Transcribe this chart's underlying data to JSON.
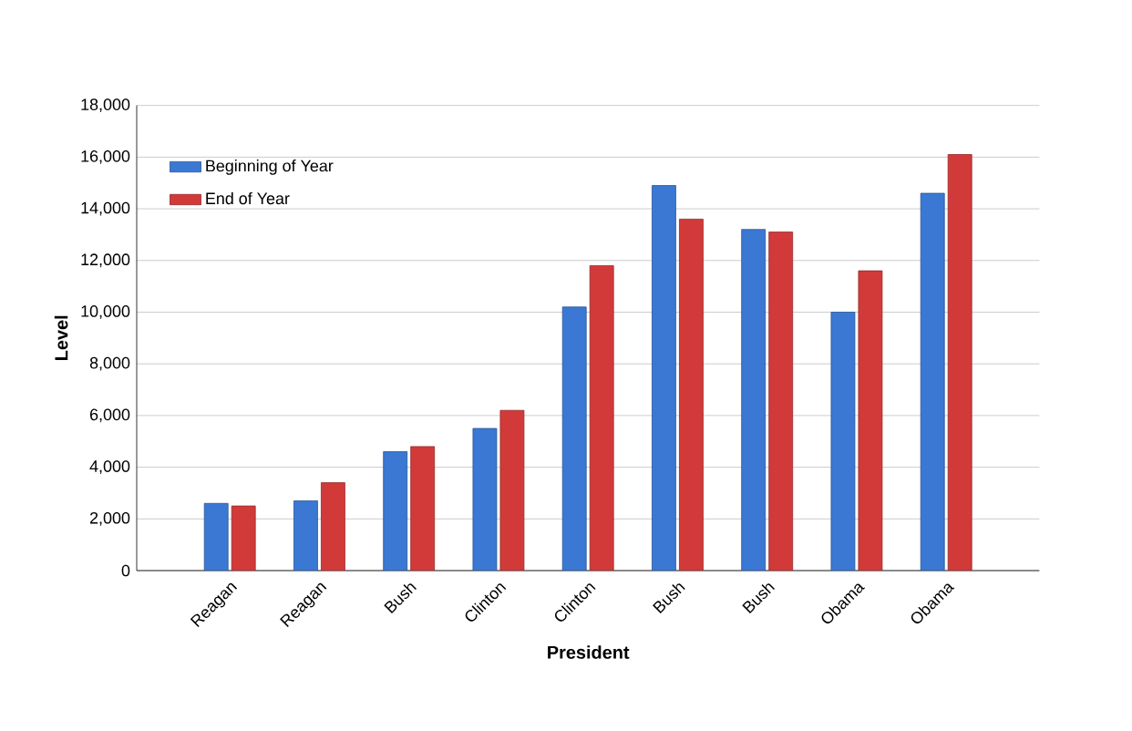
{
  "chart_data": {
    "type": "bar",
    "xlabel": "President",
    "ylabel": "Level",
    "categories": [
      "Reagan",
      "Reagan",
      "Bush",
      "Clinton",
      "Clinton",
      "Bush",
      "Bush",
      "Obama",
      "Obama"
    ],
    "series": [
      {
        "name": "Beginning of Year",
        "color": "#3a78d4",
        "values": [
          2600,
          2700,
          4600,
          5500,
          10200,
          14900,
          13200,
          10000,
          14600
        ]
      },
      {
        "name": "End of Year",
        "color": "#d23a3a",
        "values": [
          2500,
          3400,
          4800,
          6200,
          11800,
          13600,
          13100,
          11600,
          16100
        ]
      }
    ],
    "ylim": [
      0,
      18000
    ],
    "yticks": [
      0,
      {
        "value": 2000,
        "label": "2,000"
      },
      {
        "value": 4000,
        "label": "4,000"
      },
      {
        "value": 6000,
        "label": "6,000"
      },
      {
        "value": 8000,
        "label": "8,000"
      },
      {
        "value": 10000,
        "label": "10,000"
      },
      {
        "value": 12000,
        "label": "12,000"
      },
      {
        "value": 14000,
        "label": "14,000"
      },
      {
        "value": 16000,
        "label": "16,000"
      },
      {
        "value": 18000,
        "label": "18,000"
      }
    ],
    "grid": "y",
    "legend": "top left"
  }
}
